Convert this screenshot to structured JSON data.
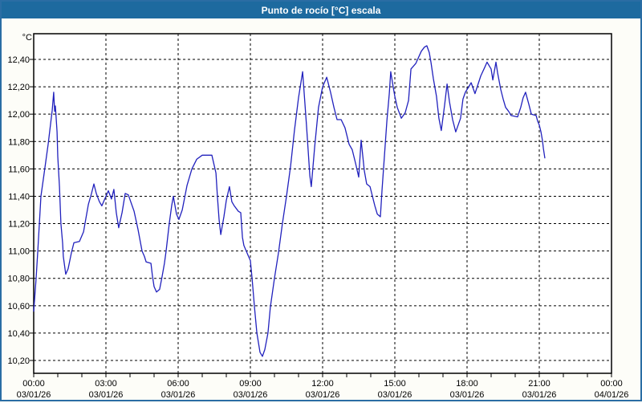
{
  "window": {
    "title": "Punto de rocío [°C] escala"
  },
  "chart": {
    "unit_label": "°C",
    "colors": {
      "titlebar": "#1d6a9f",
      "window_border": "#2a6da4",
      "line": "#2121bd",
      "grid": "#000000",
      "text": "#000000",
      "plot_bg": "#ffffff"
    },
    "y_axis": {
      "ticks": [
        {
          "value": 12.4,
          "label": "12,40"
        },
        {
          "value": 12.2,
          "label": "12,20"
        },
        {
          "value": 12.0,
          "label": "12,00"
        },
        {
          "value": 11.8,
          "label": "11,80"
        },
        {
          "value": 11.6,
          "label": "11,60"
        },
        {
          "value": 11.4,
          "label": "11,40"
        },
        {
          "value": 11.2,
          "label": "11,20"
        },
        {
          "value": 11.0,
          "label": "11,00"
        },
        {
          "value": 10.8,
          "label": "10,80"
        },
        {
          "value": 10.6,
          "label": "10,60"
        },
        {
          "value": 10.4,
          "label": "10,40"
        },
        {
          "value": 10.2,
          "label": "10,20"
        }
      ]
    },
    "x_axis": {
      "minor_tick_hours": 1,
      "ticks": [
        {
          "hour": 0,
          "time": "00:00",
          "date": "03/01/26"
        },
        {
          "hour": 3,
          "time": "03:00",
          "date": "03/01/26"
        },
        {
          "hour": 6,
          "time": "06:00",
          "date": "03/01/26"
        },
        {
          "hour": 9,
          "time": "09:00",
          "date": "03/01/26"
        },
        {
          "hour": 12,
          "time": "12:00",
          "date": "03/01/26"
        },
        {
          "hour": 15,
          "time": "15:00",
          "date": "03/01/26"
        },
        {
          "hour": 18,
          "time": "18:00",
          "date": "03/01/26"
        },
        {
          "hour": 21,
          "time": "21:00",
          "date": "03/01/26"
        },
        {
          "hour": 24,
          "time": "00:00",
          "date": "04/01/26"
        }
      ]
    }
  },
  "chart_data": {
    "type": "line",
    "title": "Punto de rocío [°C] escala",
    "ylabel": "°C",
    "x_unit": "hours since 03/01/26 00:00",
    "xlim": [
      0,
      24
    ],
    "ylim": [
      10.1,
      12.6
    ],
    "y_grid_step": 0.2,
    "x_grid_step_hours": 3,
    "grid": true,
    "legend": false,
    "series": [
      {
        "name": "Punto de rocío",
        "points": [
          [
            0.0,
            10.56
          ],
          [
            0.03,
            10.63
          ],
          [
            0.1,
            10.8
          ],
          [
            0.17,
            11.0
          ],
          [
            0.3,
            11.4
          ],
          [
            0.42,
            11.55
          ],
          [
            0.6,
            11.78
          ],
          [
            0.77,
            12.03
          ],
          [
            0.83,
            12.16
          ],
          [
            0.87,
            12.02
          ],
          [
            0.9,
            12.06
          ],
          [
            0.97,
            11.87
          ],
          [
            1.0,
            11.69
          ],
          [
            1.07,
            11.47
          ],
          [
            1.13,
            11.2
          ],
          [
            1.2,
            11.06
          ],
          [
            1.23,
            10.96
          ],
          [
            1.3,
            10.87
          ],
          [
            1.33,
            10.83
          ],
          [
            1.43,
            10.87
          ],
          [
            1.57,
            10.99
          ],
          [
            1.67,
            11.06
          ],
          [
            1.9,
            11.07
          ],
          [
            2.07,
            11.14
          ],
          [
            2.17,
            11.24
          ],
          [
            2.27,
            11.34
          ],
          [
            2.4,
            11.42
          ],
          [
            2.5,
            11.49
          ],
          [
            2.6,
            11.42
          ],
          [
            2.73,
            11.36
          ],
          [
            2.83,
            11.33
          ],
          [
            3.0,
            11.4
          ],
          [
            3.1,
            11.44
          ],
          [
            3.23,
            11.38
          ],
          [
            3.33,
            11.45
          ],
          [
            3.43,
            11.28
          ],
          [
            3.53,
            11.17
          ],
          [
            3.67,
            11.28
          ],
          [
            3.8,
            11.42
          ],
          [
            3.93,
            11.41
          ],
          [
            4.17,
            11.29
          ],
          [
            4.33,
            11.16
          ],
          [
            4.5,
            11.0
          ],
          [
            4.6,
            10.96
          ],
          [
            4.67,
            10.92
          ],
          [
            4.87,
            10.91
          ],
          [
            4.93,
            10.82
          ],
          [
            5.0,
            10.74
          ],
          [
            5.1,
            10.7
          ],
          [
            5.23,
            10.72
          ],
          [
            5.33,
            10.81
          ],
          [
            5.43,
            10.91
          ],
          [
            5.5,
            11.0
          ],
          [
            5.63,
            11.2
          ],
          [
            5.73,
            11.33
          ],
          [
            5.8,
            11.4
          ],
          [
            5.93,
            11.27
          ],
          [
            6.03,
            11.23
          ],
          [
            6.17,
            11.3
          ],
          [
            6.37,
            11.48
          ],
          [
            6.57,
            11.6
          ],
          [
            6.77,
            11.67
          ],
          [
            7.0,
            11.7
          ],
          [
            7.4,
            11.7
          ],
          [
            7.57,
            11.57
          ],
          [
            7.63,
            11.4
          ],
          [
            7.7,
            11.23
          ],
          [
            7.77,
            11.12
          ],
          [
            7.9,
            11.25
          ],
          [
            8.0,
            11.37
          ],
          [
            8.13,
            11.47
          ],
          [
            8.23,
            11.36
          ],
          [
            8.33,
            11.33
          ],
          [
            8.5,
            11.29
          ],
          [
            8.6,
            11.28
          ],
          [
            8.67,
            11.1
          ],
          [
            8.73,
            11.04
          ],
          [
            8.9,
            10.97
          ],
          [
            9.0,
            10.93
          ],
          [
            9.07,
            10.8
          ],
          [
            9.17,
            10.59
          ],
          [
            9.27,
            10.4
          ],
          [
            9.4,
            10.26
          ],
          [
            9.5,
            10.23
          ],
          [
            9.6,
            10.28
          ],
          [
            9.73,
            10.4
          ],
          [
            9.83,
            10.59
          ],
          [
            10.0,
            10.8
          ],
          [
            10.17,
            10.99
          ],
          [
            10.33,
            11.2
          ],
          [
            10.5,
            11.4
          ],
          [
            10.67,
            11.62
          ],
          [
            10.83,
            11.88
          ],
          [
            11.0,
            12.12
          ],
          [
            11.17,
            12.31
          ],
          [
            11.33,
            11.92
          ],
          [
            11.47,
            11.55
          ],
          [
            11.53,
            11.47
          ],
          [
            11.67,
            11.76
          ],
          [
            11.83,
            12.05
          ],
          [
            12.0,
            12.2
          ],
          [
            12.17,
            12.27
          ],
          [
            12.33,
            12.16
          ],
          [
            12.47,
            12.05
          ],
          [
            12.6,
            11.96
          ],
          [
            12.77,
            11.96
          ],
          [
            12.93,
            11.9
          ],
          [
            13.1,
            11.78
          ],
          [
            13.23,
            11.74
          ],
          [
            13.37,
            11.64
          ],
          [
            13.5,
            11.54
          ],
          [
            13.6,
            11.81
          ],
          [
            13.73,
            11.59
          ],
          [
            13.83,
            11.49
          ],
          [
            13.97,
            11.47
          ],
          [
            14.07,
            11.4
          ],
          [
            14.17,
            11.33
          ],
          [
            14.27,
            11.27
          ],
          [
            14.4,
            11.25
          ],
          [
            14.47,
            11.45
          ],
          [
            14.57,
            11.7
          ],
          [
            14.67,
            11.95
          ],
          [
            14.77,
            12.15
          ],
          [
            14.83,
            12.31
          ],
          [
            14.93,
            12.2
          ],
          [
            15.0,
            12.13
          ],
          [
            15.1,
            12.05
          ],
          [
            15.27,
            11.97
          ],
          [
            15.43,
            12.01
          ],
          [
            15.57,
            12.1
          ],
          [
            15.67,
            12.33
          ],
          [
            15.87,
            12.37
          ],
          [
            16.1,
            12.46
          ],
          [
            16.23,
            12.49
          ],
          [
            16.33,
            12.5
          ],
          [
            16.43,
            12.45
          ],
          [
            16.5,
            12.38
          ],
          [
            16.6,
            12.26
          ],
          [
            16.73,
            12.13
          ],
          [
            16.83,
            11.97
          ],
          [
            16.93,
            11.88
          ],
          [
            17.07,
            12.07
          ],
          [
            17.17,
            12.22
          ],
          [
            17.27,
            12.09
          ],
          [
            17.4,
            11.96
          ],
          [
            17.53,
            11.87
          ],
          [
            17.73,
            11.97
          ],
          [
            17.83,
            12.11
          ],
          [
            17.93,
            12.16
          ],
          [
            18.07,
            12.2
          ],
          [
            18.17,
            12.23
          ],
          [
            18.33,
            12.15
          ],
          [
            18.57,
            12.28
          ],
          [
            18.73,
            12.34
          ],
          [
            18.83,
            12.38
          ],
          [
            19.0,
            12.33
          ],
          [
            19.07,
            12.25
          ],
          [
            19.2,
            12.38
          ],
          [
            19.27,
            12.3
          ],
          [
            19.4,
            12.18
          ],
          [
            19.5,
            12.11
          ],
          [
            19.6,
            12.05
          ],
          [
            19.73,
            12.02
          ],
          [
            19.83,
            11.99
          ],
          [
            20.1,
            11.98
          ],
          [
            20.23,
            12.05
          ],
          [
            20.33,
            12.12
          ],
          [
            20.43,
            12.16
          ],
          [
            20.57,
            12.07
          ],
          [
            20.67,
            12.0
          ],
          [
            20.87,
            11.99
          ],
          [
            20.93,
            11.95
          ],
          [
            21.0,
            11.92
          ],
          [
            21.07,
            11.87
          ],
          [
            21.13,
            11.81
          ],
          [
            21.17,
            11.75
          ],
          [
            21.23,
            11.68
          ]
        ]
      }
    ]
  }
}
